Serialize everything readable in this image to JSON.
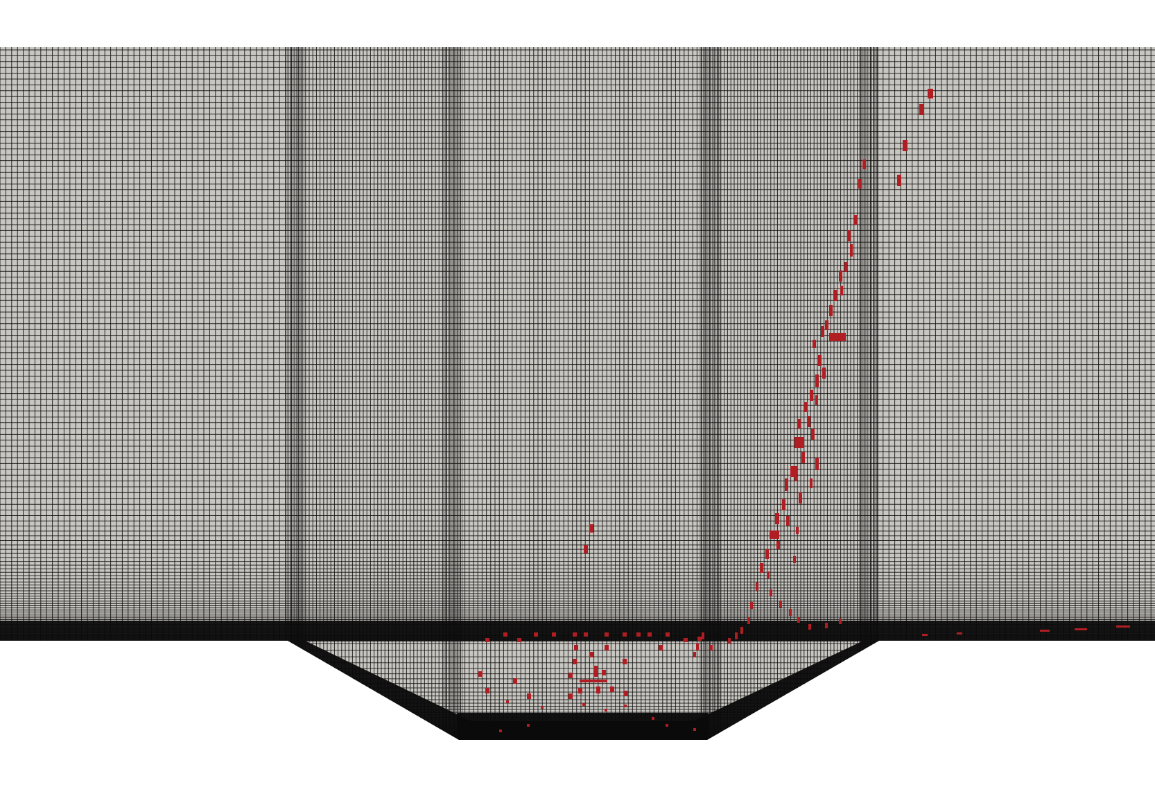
{
  "view": {
    "background_color": "#ffffff",
    "mesh_fill_color": "#c8c6c1",
    "mesh_line_color": "#0a0a0a",
    "highlight_color": "#b01e23",
    "legend_text": "",
    "title_text": ""
  },
  "mesh": {
    "description_icon": "mesh-grid-icon",
    "channel_profile": "trapezoidal-trench"
  }
}
